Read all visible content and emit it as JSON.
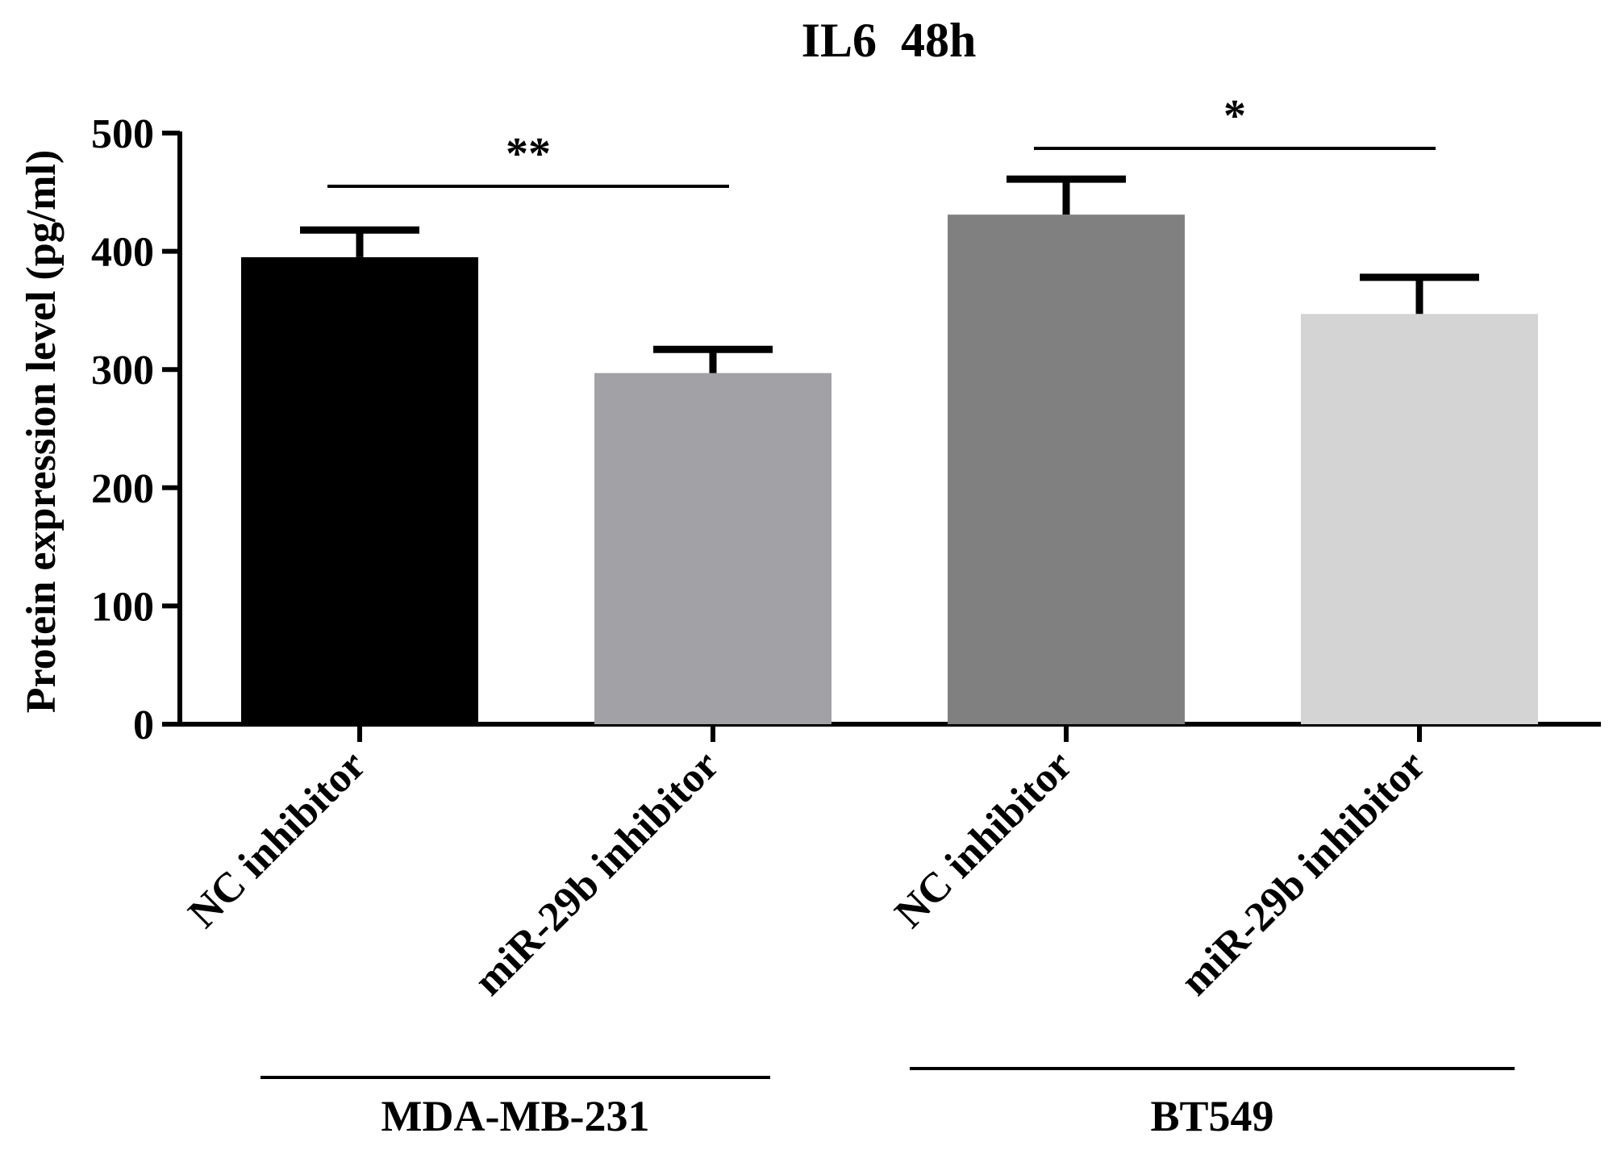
{
  "chart_data": {
    "type": "bar",
    "title": "IL6  48h",
    "ylabel": "Protein expression level (pg/ml)",
    "xlabel": "",
    "ylim": [
      0,
      500
    ],
    "yticks": [
      0,
      100,
      200,
      300,
      400,
      500
    ],
    "categories": [
      "NC inhibitor",
      "miR-29b inhibitor",
      "NC inhibitor",
      "miR-29b inhibitor"
    ],
    "values": [
      395,
      297,
      431,
      347
    ],
    "errors": [
      23,
      20,
      30,
      31
    ],
    "colors": [
      "#000000",
      "#a2a2a6",
      "#808080",
      "#d4d4d4"
    ],
    "groups": [
      {
        "name": "MDA-MB-231",
        "categories": [
          0,
          1
        ]
      },
      {
        "name": "BT549",
        "categories": [
          2,
          3
        ]
      }
    ],
    "significance": [
      {
        "from": 0,
        "to": 1,
        "label": "**",
        "y": 455
      },
      {
        "from": 2,
        "to": 3,
        "label": "*",
        "y": 487
      }
    ]
  }
}
